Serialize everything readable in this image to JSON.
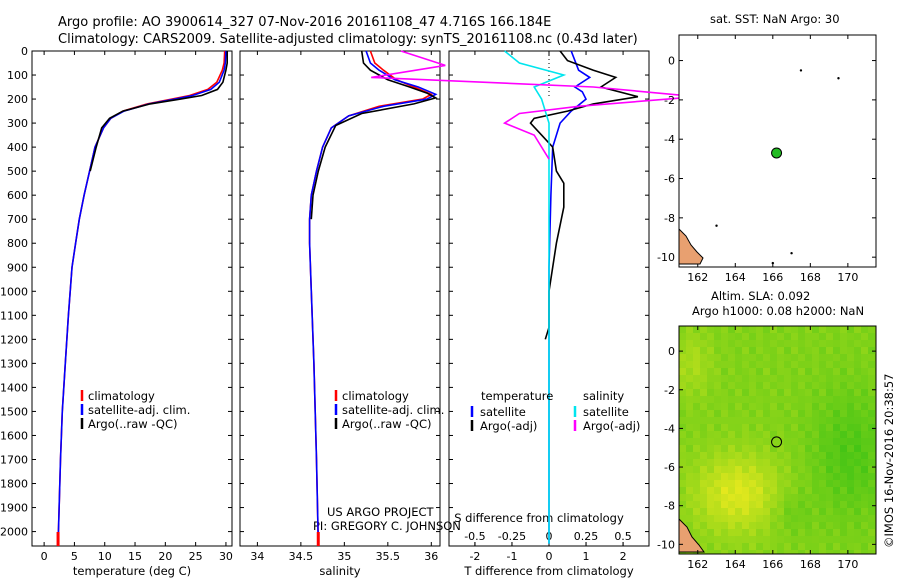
{
  "header": {
    "line1": "Argo profile: AO 3900614_327 07-Nov-2016 20161108_47 4.716S 166.184E",
    "line2": "Climatology: CARS2009. Satellite-adjusted climatology: synTS_20161108.nc (0.43d later)"
  },
  "footer": {
    "project": "US ARGO PROJECT",
    "pi": "PI: GREGORY C. JOHNSON",
    "credit": "©IMOS 16-Nov-2016 20:38:57"
  },
  "colors": {
    "climatology": "#ff0000",
    "satellite": "#0000ff",
    "argo": "#000000",
    "sat_salinity": "#00e5ee",
    "argo_salinity": "#ff00ff",
    "float_marker": "#22bb22"
  },
  "chart_data": [
    {
      "type": "line",
      "xlabel": "temperature (deg C)",
      "ylabel": "",
      "xlim": [
        -2,
        31
      ],
      "ylim": [
        2060,
        0
      ],
      "xticks": [
        0,
        5,
        10,
        15,
        20,
        25,
        30
      ],
      "yticks": [
        0,
        100,
        200,
        300,
        400,
        500,
        600,
        700,
        800,
        900,
        1000,
        1100,
        1200,
        1300,
        1400,
        1500,
        1600,
        1700,
        1800,
        1900,
        2000
      ],
      "legend": [
        "climatology",
        "satellite-adj. clim.",
        "Argo(..raw -QC)"
      ],
      "series": [
        {
          "name": "climatology",
          "color": "#ff0000",
          "x": [
            29.8,
            29.7,
            29.4,
            28.5,
            27.0,
            24.0,
            21.0,
            17.0,
            13.0,
            11.0,
            9.8,
            8.4,
            7.5,
            6.6,
            5.8,
            5.2,
            4.6,
            4.0,
            3.5,
            3.0,
            2.7,
            2.3
          ],
          "y": [
            0,
            50,
            80,
            130,
            160,
            185,
            200,
            220,
            250,
            280,
            320,
            400,
            500,
            600,
            700,
            800,
            900,
            1100,
            1300,
            1500,
            1700,
            2050
          ]
        },
        {
          "name": "satellite-adj. clim.",
          "color": "#0000ff",
          "x": [
            30.0,
            29.9,
            29.7,
            28.9,
            27.5,
            24.5,
            21.5,
            17.3,
            13.2,
            11.0,
            9.8,
            8.4,
            7.5,
            6.6,
            5.8,
            5.2,
            4.6,
            4.0,
            3.5,
            3.0,
            2.7,
            2.3
          ],
          "y": [
            0,
            50,
            80,
            130,
            160,
            185,
            200,
            220,
            250,
            280,
            320,
            400,
            500,
            600,
            700,
            800,
            900,
            1100,
            1300,
            1500,
            1700,
            2050
          ]
        },
        {
          "name": "Argo(..raw -QC)",
          "color": "#000000",
          "x": [
            30.2,
            30.2,
            30.0,
            29.5,
            28.6,
            26.0,
            22.5,
            17.5,
            13.0,
            10.8,
            9.5,
            8.6,
            7.6
          ],
          "y": [
            0,
            50,
            80,
            130,
            160,
            185,
            200,
            220,
            250,
            280,
            320,
            400,
            500
          ]
        }
      ]
    },
    {
      "type": "line",
      "xlabel": "salinity",
      "ylabel": "",
      "xlim": [
        33.8,
        36.1
      ],
      "ylim": [
        2060,
        0
      ],
      "xticks": [
        34,
        34.5,
        35,
        35.5,
        36
      ],
      "xticklabels": [
        "34",
        "34.5",
        "35",
        "35.5",
        "36"
      ],
      "legend": [
        "climatology",
        "satellite-adj. clim.",
        "Argo(..raw -QC)"
      ],
      "series": [
        {
          "name": "climatology",
          "color": "#ff0000",
          "x": [
            35.3,
            35.35,
            35.45,
            35.6,
            35.8,
            36.0,
            35.9,
            35.4,
            35.05,
            34.85,
            34.75,
            34.68,
            34.62,
            34.6,
            34.6,
            34.62,
            34.65,
            34.68,
            34.7
          ],
          "y": [
            0,
            50,
            80,
            120,
            150,
            180,
            200,
            230,
            270,
            320,
            400,
            500,
            600,
            700,
            800,
            1000,
            1300,
            1700,
            2050
          ]
        },
        {
          "name": "satellite-adj. clim.",
          "color": "#0000ff",
          "x": [
            35.25,
            35.3,
            35.4,
            35.58,
            35.85,
            36.05,
            35.95,
            35.45,
            35.05,
            34.85,
            34.75,
            34.68,
            34.62,
            34.6,
            34.6,
            34.62,
            34.65,
            34.68,
            34.7
          ],
          "y": [
            0,
            50,
            80,
            120,
            150,
            180,
            200,
            230,
            270,
            320,
            400,
            500,
            600,
            700,
            800,
            1000,
            1300,
            1700,
            2050
          ]
        },
        {
          "name": "Argo(..raw -QC)",
          "color": "#000000",
          "x": [
            35.2,
            35.22,
            35.3,
            35.5,
            35.75,
            35.95,
            36.05,
            35.8,
            35.2,
            34.9,
            34.78,
            34.7,
            34.64,
            34.62
          ],
          "y": [
            0,
            50,
            80,
            120,
            150,
            175,
            195,
            220,
            260,
            310,
            400,
            500,
            600,
            700
          ]
        }
      ]
    },
    {
      "type": "line",
      "xlabel": "T difference from climatology",
      "xlabel2": "S difference from climatology",
      "xlim": [
        -2.7,
        2.7
      ],
      "ylim": [
        2060,
        0
      ],
      "xticks": [
        -2,
        -1,
        0,
        1,
        2
      ],
      "xticks2": [
        -0.5,
        -0.25,
        0,
        0.25,
        0.5
      ],
      "xticklabels2": [
        "-0.5",
        "-0.25",
        "0",
        "0.25",
        "0.5"
      ],
      "legend_titles": [
        "temperature",
        "salinity"
      ],
      "legend": [
        "satellite",
        "Argo(-adj)",
        "satellite",
        "Argo(-adj)"
      ],
      "series": [
        {
          "name": "satellite",
          "group": "temperature",
          "color": "#0000ff",
          "x": [
            0.6,
            0.7,
            0.8,
            1.1,
            0.7,
            0.9,
            1.0,
            0.6,
            0.3,
            0.1,
            0.05,
            0.0,
            0.0,
            0.0
          ],
          "y": [
            0,
            40,
            80,
            110,
            150,
            170,
            200,
            250,
            300,
            400,
            600,
            900,
            1400,
            2050
          ]
        },
        {
          "name": "Argo(-adj)",
          "group": "temperature",
          "color": "#000000",
          "x": [
            0.3,
            0.5,
            1.2,
            1.8,
            1.4,
            2.4,
            1.2,
            0.5,
            -0.4,
            -0.5,
            -0.2,
            0.1,
            0.2,
            0.4,
            0.4,
            0.2,
            0.0,
            0.0,
            0.0,
            -0.1
          ],
          "y": [
            0,
            40,
            80,
            110,
            150,
            190,
            220,
            250,
            280,
            300,
            350,
            400,
            500,
            550,
            650,
            800,
            1000,
            1100,
            1150,
            1200
          ]
        },
        {
          "name": "satellite",
          "group": "salinity",
          "color": "#00e5ee",
          "x": [
            -0.3,
            -0.2,
            0.1,
            -0.1,
            -0.05,
            0.0,
            0.0,
            0.0
          ],
          "y": [
            0,
            50,
            100,
            150,
            200,
            300,
            600,
            2050
          ]
        },
        {
          "name": "Argo(-adj)",
          "group": "salinity",
          "color": "#ff00ff",
          "x": [
            -1.0,
            -0.7,
            -1.2,
            0.3,
            1.0,
            0.2,
            -0.2,
            -0.3,
            -0.1,
            0.0
          ],
          "y": [
            0,
            60,
            110,
            150,
            190,
            230,
            260,
            300,
            350,
            450
          ]
        }
      ]
    },
    {
      "type": "scatter",
      "title": "sat. SST: NaN Argo: 30",
      "xlim": [
        161,
        171.5
      ],
      "ylim": [
        -10.5,
        1.3
      ],
      "xticks": [
        162,
        164,
        166,
        168,
        170
      ],
      "yticks": [
        0,
        -2,
        -4,
        -6,
        -8,
        -10
      ],
      "points": [
        {
          "label": "float",
          "x": 166.2,
          "y": -4.7
        },
        {
          "label": "island",
          "x": 167.5,
          "y": -0.5
        },
        {
          "label": "island",
          "x": 169.5,
          "y": -0.9
        },
        {
          "label": "island",
          "x": 163.0,
          "y": -8.4
        },
        {
          "label": "island",
          "x": 167.0,
          "y": -9.8
        },
        {
          "label": "island",
          "x": 166.0,
          "y": -10.3
        }
      ]
    },
    {
      "type": "heatmap",
      "title": "Altim. SLA: 0.092",
      "subtitle": "Argo h1000: 0.08 h2000: NaN",
      "xlim": [
        161,
        171.5
      ],
      "ylim": [
        -10.5,
        1.3
      ],
      "xticks": [
        162,
        164,
        166,
        168,
        170
      ],
      "yticks": [
        0,
        -2,
        -4,
        -6,
        -8,
        -10
      ],
      "marker": {
        "x": 166.2,
        "y": -4.7
      }
    }
  ]
}
